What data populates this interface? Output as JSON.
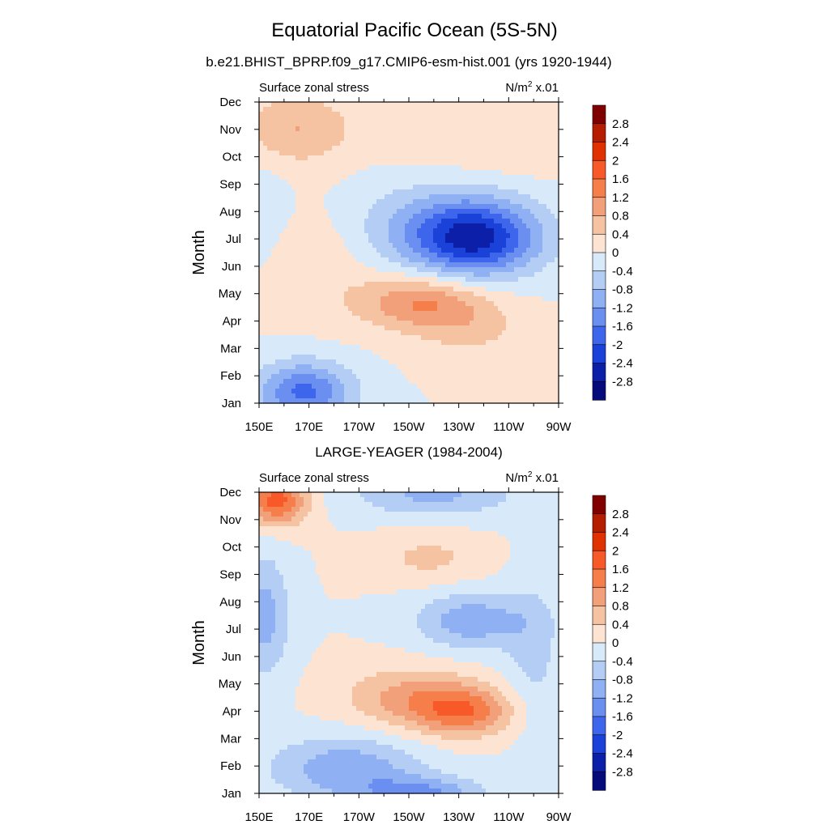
{
  "figure": {
    "title": "Equatorial Pacific Ocean (5S-5N)",
    "subtitle": "b.e21.BHIST_BPRP.f09_g17.CMIP6-esm-hist.001 (yrs 1920-1944)"
  },
  "chart_data": [
    {
      "type": "heatmap",
      "title": "b.e21.BHIST_BPRP.f09_g17.CMIP6-esm-hist.001 (yrs 1920-1944)",
      "left_label": "Surface zonal stress",
      "units_label": "N/m",
      "units_sup": "2",
      "units_suffix": " x.01",
      "ylabel": "Month",
      "xlabel": "",
      "x_ticks": [
        "150E",
        "170E",
        "170W",
        "150W",
        "130W",
        "110W",
        "90W"
      ],
      "y_ticks": [
        "Jan",
        "Feb",
        "Mar",
        "Apr",
        "May",
        "Jun",
        "Jul",
        "Aug",
        "Sep",
        "Oct",
        "Nov",
        "Dec"
      ],
      "x_range_deg_east": [
        150,
        270
      ],
      "y_range_month": [
        1,
        12
      ],
      "contour_levels": [
        -2.8,
        -2.4,
        -2,
        -1.6,
        -1.2,
        -0.8,
        -0.4,
        0,
        0.4,
        0.8,
        1.2,
        1.6,
        2,
        2.4,
        2.8
      ],
      "features": [
        {
          "lon": 237,
          "month": 7.0,
          "value": -2.0,
          "spread_lon": 24,
          "spread_month": 1.3
        },
        {
          "lon": 222,
          "month": 7.4,
          "value": -0.9,
          "spread_lon": 38,
          "spread_month": 1.7
        },
        {
          "lon": 168,
          "month": 1.4,
          "value": -1.7,
          "spread_lon": 19,
          "spread_month": 1.1
        },
        {
          "lon": 214,
          "month": 4.7,
          "value": 1.2,
          "spread_lon": 24,
          "spread_month": 1.0
        },
        {
          "lon": 235,
          "month": 3.8,
          "value": 0.5,
          "spread_lon": 22,
          "spread_month": 1.2
        },
        {
          "lon": 175,
          "month": 6.3,
          "value": 0.4,
          "spread_lon": 22,
          "spread_month": 2.0
        },
        {
          "lon": 165,
          "month": 11.0,
          "value": 0.8,
          "spread_lon": 22,
          "spread_month": 1.3
        },
        {
          "lon": 245,
          "month": 11.0,
          "value": 0.4,
          "spread_lon": 40,
          "spread_month": 1.8
        },
        {
          "lon": 150,
          "month": 8.0,
          "value": -0.3,
          "spread_lon": 12,
          "spread_month": 2.0
        }
      ]
    },
    {
      "type": "heatmap",
      "title": "LARGE-YEAGER (1984-2004)",
      "left_label": "Surface zonal stress",
      "units_label": "N/m",
      "units_sup": "2",
      "units_suffix": " x.01",
      "ylabel": "Month",
      "xlabel": "",
      "x_ticks": [
        "150E",
        "170E",
        "170W",
        "150W",
        "130W",
        "110W",
        "90W"
      ],
      "y_ticks": [
        "Jan",
        "Feb",
        "Mar",
        "Apr",
        "May",
        "Jun",
        "Jul",
        "Aug",
        "Sep",
        "Oct",
        "Nov",
        "Dec"
      ],
      "x_range_deg_east": [
        150,
        270
      ],
      "y_range_month": [
        1,
        12
      ],
      "contour_levels": [
        -2.8,
        -2.4,
        -2,
        -1.6,
        -1.2,
        -0.8,
        -0.4,
        0,
        0.4,
        0.8,
        1.2,
        1.6,
        2,
        2.4,
        2.8
      ],
      "features": [
        {
          "lon": 157,
          "month": 11.7,
          "value": 1.8,
          "spread_lon": 12,
          "spread_month": 0.9
        },
        {
          "lon": 232,
          "month": 4.0,
          "value": 1.4,
          "spread_lon": 20,
          "spread_month": 0.9
        },
        {
          "lon": 210,
          "month": 4.5,
          "value": 0.9,
          "spread_lon": 26,
          "spread_month": 1.1
        },
        {
          "lon": 218,
          "month": 9.6,
          "value": 0.5,
          "spread_lon": 22,
          "spread_month": 0.9
        },
        {
          "lon": 235,
          "month": 7.3,
          "value": -1.1,
          "spread_lon": 22,
          "spread_month": 1.0
        },
        {
          "lon": 220,
          "month": 11.9,
          "value": -0.9,
          "spread_lon": 32,
          "spread_month": 0.8
        },
        {
          "lon": 185,
          "month": 1.9,
          "value": -1.1,
          "spread_lon": 30,
          "spread_month": 1.2
        },
        {
          "lon": 215,
          "month": 1.0,
          "value": -1.2,
          "spread_lon": 24,
          "spread_month": 0.6
        },
        {
          "lon": 152,
          "month": 7.5,
          "value": -1.0,
          "spread_lon": 10,
          "spread_month": 2.2
        },
        {
          "lon": 260,
          "month": 6.0,
          "value": -0.5,
          "spread_lon": 12,
          "spread_month": 3.0
        }
      ]
    }
  ],
  "colorbar": {
    "labels": [
      "2.8",
      "2.4",
      "2",
      "1.6",
      "1.2",
      "0.8",
      "0.4",
      "0",
      "-0.4",
      "-0.8",
      "-1.2",
      "-1.6",
      "-2",
      "-2.4",
      "-2.8"
    ],
    "colors": [
      "#800000",
      "#b51c00",
      "#e03200",
      "#f75a28",
      "#f57e4a",
      "#f2a07a",
      "#f5c3a2",
      "#fde4d2",
      "#d8eaf9",
      "#b4cdf5",
      "#8fb0f3",
      "#6a8ff0",
      "#3e66ec",
      "#1a42d8",
      "#0c1fa8",
      "#050b7a"
    ]
  }
}
